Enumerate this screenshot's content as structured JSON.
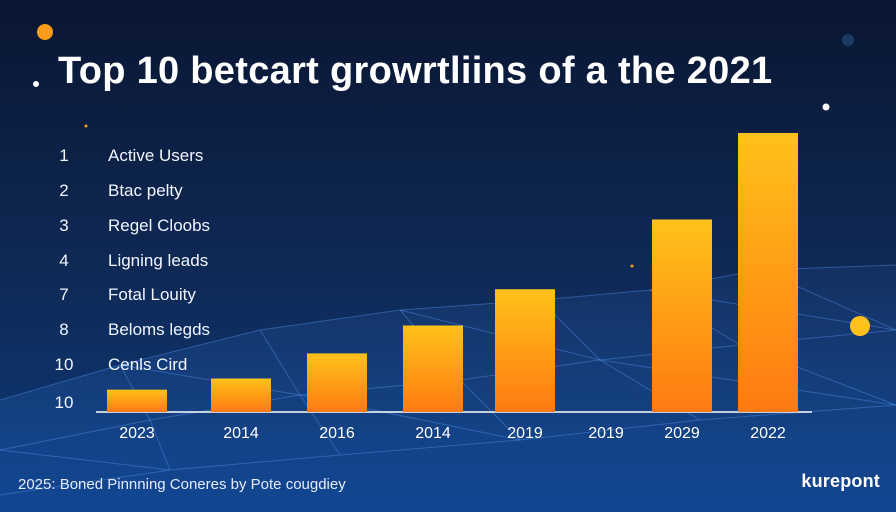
{
  "title": "Top 10 betcart growrtliins of a the 2021",
  "ranked_list": [
    {
      "rank": "1",
      "label": "Active Users"
    },
    {
      "rank": "2",
      "label": "Btac pelty"
    },
    {
      "rank": "3",
      "label": "Regel Cloobs"
    },
    {
      "rank": "4",
      "label": "Ligning leads"
    },
    {
      "rank": "7",
      "label": "Fotal Louity"
    },
    {
      "rank": "8",
      "label": "Beloms legds"
    },
    {
      "rank": "10",
      "label": "Cenls Cird"
    },
    {
      "rank": "10",
      "label": ""
    }
  ],
  "footer_note": "2025: Boned Pinnning Coneres by Pote cougdiey",
  "brand": "kurepont",
  "colors": {
    "background_top": "#0a1632",
    "background_bottom": "#0b3a7a",
    "bar_top": "#ffc21a",
    "bar_bottom": "#ff7a12",
    "dot_orange": "#ff9b1a",
    "dot_yellow": "#ffc21a"
  },
  "chart_data": {
    "type": "bar",
    "categories": [
      "2023",
      "2014",
      "2016",
      "2014",
      "2019",
      "2019",
      "2029",
      "2022"
    ],
    "values": [
      8,
      12,
      21,
      31,
      44,
      null,
      69,
      100
    ],
    "ylim": [
      0,
      100
    ],
    "grid": false,
    "legend": "none"
  }
}
